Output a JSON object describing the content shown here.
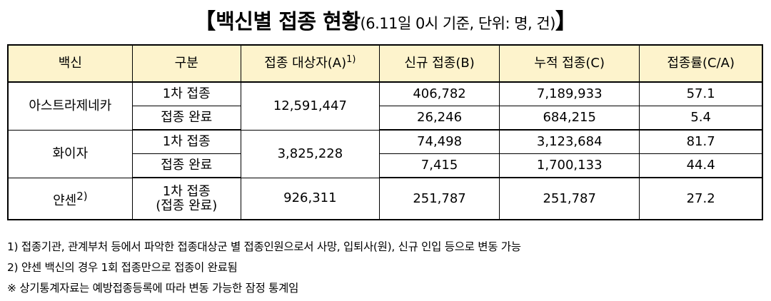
{
  "title": {
    "open_bracket": "【",
    "main": "백신별 접종 현황",
    "sub": "(6.11일 0시 기준, 단위: 명, 건)",
    "close_bracket": "】"
  },
  "table": {
    "headers": {
      "vaccine": "백신",
      "type": "구분",
      "target": "접종 대상자(A)",
      "target_sup": "1)",
      "new": "신규 접종(B)",
      "cumulative": "누적 접종(C)",
      "rate": "접종률(C/A)"
    },
    "groups": [
      {
        "vaccine": "아스트라제네카",
        "target": "12,591,447",
        "rows": [
          {
            "type": "1차 접종",
            "new": "406,782",
            "cumulative": "7,189,933",
            "rate": "57.1"
          },
          {
            "type": "접종 완료",
            "new": "26,246",
            "cumulative": "684,215",
            "rate": "5.4"
          }
        ]
      },
      {
        "vaccine": "화이자",
        "target": "3,825,228",
        "rows": [
          {
            "type": "1차 접종",
            "new": "74,498",
            "cumulative": "3,123,684",
            "rate": "81.7"
          },
          {
            "type": "접종 완료",
            "new": "7,415",
            "cumulative": "1,700,133",
            "rate": "44.4"
          }
        ]
      },
      {
        "vaccine": "얀센",
        "vaccine_sup": "2)",
        "target": "926,311",
        "rows": [
          {
            "type_line1": "1차 접종",
            "type_line2": "(접종 완료)",
            "new": "251,787",
            "cumulative": "251,787",
            "rate": "27.2"
          }
        ]
      }
    ]
  },
  "notes": [
    "1) 접종기관, 관계부처 등에서 파악한 접종대상군 별 접종인원으로서 사망, 입퇴사(원), 신규 인입 등으로 변동 가능",
    "2) 얀센 백신의 경우 1회 접종만으로 접종이 완료됨",
    "※ 상기통계자료는 예방접종등록에 따라 변동 가능한 잠정 통계임"
  ]
}
